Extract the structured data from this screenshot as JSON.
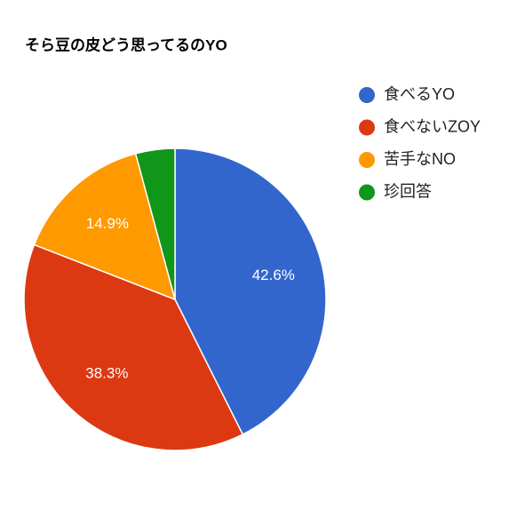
{
  "chart_data": {
    "type": "pie",
    "title": "そら豆の皮どう思ってるのYO",
    "categories": [
      "食べるYO",
      "食べないZOY",
      "苦手なNO",
      "珍回答"
    ],
    "values": [
      42.6,
      38.3,
      14.9,
      4.2
    ],
    "value_labels": [
      "42.6%",
      "38.3%",
      "14.9%",
      null
    ],
    "colors": [
      "#3366cc",
      "#dc3912",
      "#ff9900",
      "#109618"
    ],
    "legend": "right"
  }
}
